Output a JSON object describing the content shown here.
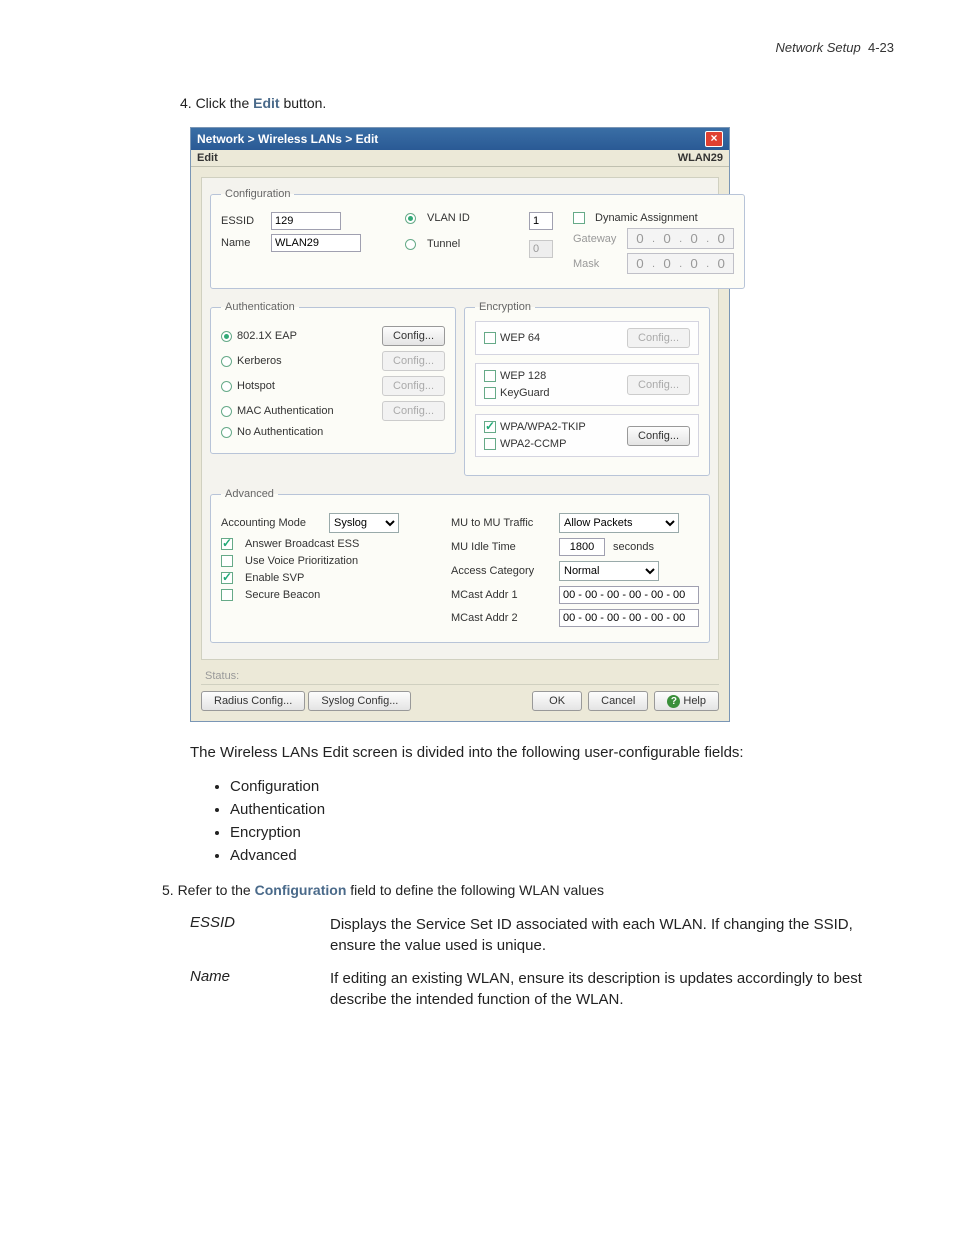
{
  "page_header": {
    "section": "Network Setup",
    "page": "4-23"
  },
  "step4": {
    "prefix": "4. Click the ",
    "bold": "Edit",
    "suffix": " button."
  },
  "win": {
    "title": "Network > Wireless LANs > Edit",
    "menubar_left": "Edit",
    "menubar_right": "WLAN29",
    "colors": {
      "titlebar_gradient_top": "#3a6ea5",
      "titlebar_gradient_bottom": "#2a5a95",
      "panel_bg": "#ece9d8",
      "fieldset_bg": "#fcfcf7",
      "close_bg": "#e04030"
    },
    "config": {
      "legend": "Configuration",
      "essid_label": "ESSID",
      "essid_value": "129",
      "name_label": "Name",
      "name_value": "WLAN29",
      "vlan_label": "VLAN ID",
      "vlan_selected": true,
      "vlan_value": "1",
      "tunnel_label": "Tunnel",
      "tunnel_selected": false,
      "tunnel_value": "0",
      "dyn_label": "Dynamic Assignment",
      "dyn_checked": false,
      "gateway_label": "Gateway",
      "gateway_ip": [
        "0",
        "0",
        "0",
        "0"
      ],
      "mask_label": "Mask",
      "mask_ip": [
        "0",
        "0",
        "0",
        "0"
      ]
    },
    "auth": {
      "legend": "Authentication",
      "options": [
        {
          "label": "802.1X EAP",
          "selected": true,
          "btn_enabled": true
        },
        {
          "label": "Kerberos",
          "selected": false,
          "btn_enabled": false
        },
        {
          "label": "Hotspot",
          "selected": false,
          "btn_enabled": false
        },
        {
          "label": "MAC Authentication",
          "selected": false,
          "btn_enabled": false
        },
        {
          "label": "No Authentication",
          "selected": false,
          "btn_enabled": null
        }
      ],
      "config_btn": "Config..."
    },
    "enc": {
      "legend": "Encryption",
      "groups": [
        {
          "items": [
            {
              "label": "WEP 64",
              "checked": false
            }
          ],
          "btn_enabled": false
        },
        {
          "items": [
            {
              "label": "WEP 128",
              "checked": false
            },
            {
              "label": "KeyGuard",
              "checked": false
            }
          ],
          "btn_enabled": false
        },
        {
          "items": [
            {
              "label": "WPA/WPA2-TKIP",
              "checked": true
            },
            {
              "label": "WPA2-CCMP",
              "checked": false
            }
          ],
          "btn_enabled": true
        }
      ],
      "config_btn": "Config..."
    },
    "adv": {
      "legend": "Advanced",
      "accounting_label": "Accounting Mode",
      "accounting_value": "Syslog",
      "answer_bcast_label": "Answer Broadcast ESS",
      "answer_bcast_checked": true,
      "voice_prio_label": "Use Voice Prioritization",
      "voice_prio_checked": false,
      "enable_svp_label": "Enable SVP",
      "enable_svp_checked": true,
      "secure_beacon_label": "Secure Beacon",
      "secure_beacon_checked": false,
      "mu_traffic_label": "MU to MU Traffic",
      "mu_traffic_value": "Allow Packets",
      "idle_label": "MU Idle Time",
      "idle_value": "1800",
      "idle_unit": "seconds",
      "access_cat_label": "Access Category",
      "access_cat_value": "Normal",
      "mcast1_label": "MCast Addr 1",
      "mcast1_value": "00 - 00 - 00 - 00 - 00 - 00",
      "mcast2_label": "MCast Addr 2",
      "mcast2_value": "00 - 00 - 00 - 00 - 00 - 00"
    },
    "status_label": "Status:",
    "footer": {
      "radius_btn": "Radius Config...",
      "syslog_btn": "Syslog Config...",
      "ok_btn": "OK",
      "cancel_btn": "Cancel",
      "help_btn": "Help"
    }
  },
  "body_text": "The Wireless LANs Edit screen is divided into the following user-configurable fields:",
  "bullets": [
    "Configuration",
    "Authentication",
    "Encryption",
    "Advanced"
  ],
  "step5": {
    "prefix": "5. Refer to the ",
    "bold": "Configuration",
    "suffix": " field to define the following WLAN values"
  },
  "defs": [
    {
      "term": "ESSID",
      "desc": "Displays the Service Set ID associated with each WLAN. If changing the SSID, ensure the value used is unique."
    },
    {
      "term": "Name",
      "desc": "If editing an existing WLAN, ensure its description is updates accordingly to best describe the intended function of the WLAN."
    }
  ]
}
